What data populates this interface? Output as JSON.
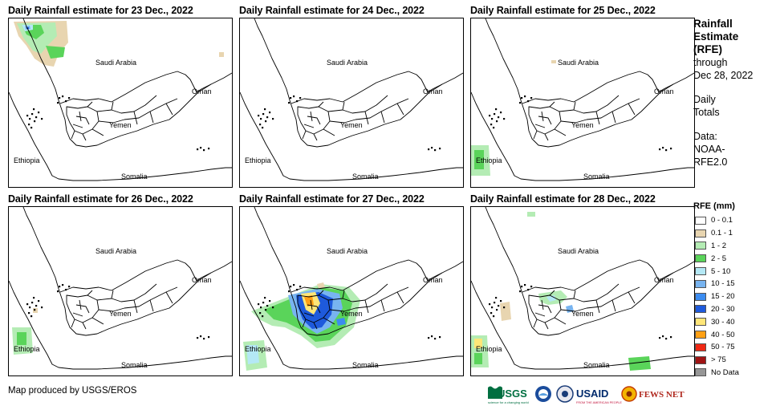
{
  "panels": [
    {
      "title": "Daily Rainfall estimate for 23 Dec., 2022",
      "day": "23"
    },
    {
      "title": "Daily Rainfall estimate for 24 Dec., 2022",
      "day": "24"
    },
    {
      "title": "Daily Rainfall estimate for 25 Dec., 2022",
      "day": "25"
    },
    {
      "title": "Daily Rainfall estimate for 26 Dec., 2022",
      "day": "26"
    },
    {
      "title": "Daily Rainfall estimate for 27 Dec., 2022",
      "day": "27"
    },
    {
      "title": "Daily Rainfall estimate for 28 Dec., 2022",
      "day": "28"
    }
  ],
  "map_labels": {
    "saudi_arabia": "Saudi Arabia",
    "yemen": "Yemen",
    "oman": "Oman",
    "ethiopia": "Ethiopia",
    "somalia": "Somalia"
  },
  "sidebar": {
    "title_lines": [
      "Rainfall",
      "Estimate",
      "(RFE)"
    ],
    "through": "through",
    "date": "Dec 28, 2022",
    "daily_lines": [
      "Daily",
      "Totals"
    ],
    "data_lines": [
      "Data:",
      "NOAA-",
      "RFE2.0"
    ]
  },
  "legend": {
    "title": "RFE (mm)",
    "items": [
      {
        "label": "0 - 0.1",
        "color": "#ffffff"
      },
      {
        "label": "0.1 - 1",
        "color": "#e8d5b0"
      },
      {
        "label": "1 - 2",
        "color": "#b4ecb4"
      },
      {
        "label": "2 - 5",
        "color": "#5ad45a"
      },
      {
        "label": "5 - 10",
        "color": "#b4e8f5"
      },
      {
        "label": "10 - 15",
        "color": "#78b4f0"
      },
      {
        "label": "15 - 20",
        "color": "#3c8cf0"
      },
      {
        "label": "20 - 30",
        "color": "#1e5adc"
      },
      {
        "label": "30 - 40",
        "color": "#ffe678"
      },
      {
        "label": "40 - 50",
        "color": "#ffa014"
      },
      {
        "label": "50 - 75",
        "color": "#f02814"
      },
      {
        "label": "> 75",
        "color": "#a01414"
      },
      {
        "label": "No Data",
        "color": "#969696"
      }
    ]
  },
  "footer": {
    "credit": "Map produced by USGS/EROS",
    "logos": {
      "usgs": "USGS",
      "usgs_tagline": "science for a changing world",
      "usaid": "USAID",
      "usaid_tagline": "FROM THE AMERICAN PEOPLE",
      "fewsnet": "FEWS NET"
    }
  }
}
